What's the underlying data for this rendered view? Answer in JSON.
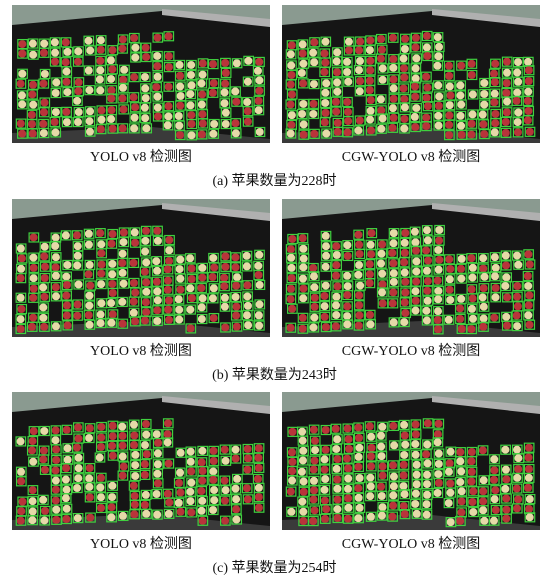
{
  "figures": [
    {
      "left_caption": "YOLO v8 检测图",
      "right_caption": "CGW-YOLO v8 检测图",
      "caption": "(a) 苹果数量为228时"
    },
    {
      "left_caption": "YOLO v8 检测图",
      "right_caption": "CGW-YOLO v8 检测图",
      "caption": "(b) 苹果数量为243时"
    },
    {
      "left_caption": "YOLO v8 检测图",
      "right_caption": "CGW-YOLO v8 检测图",
      "caption": "(c) 苹果数量为254时"
    }
  ]
}
